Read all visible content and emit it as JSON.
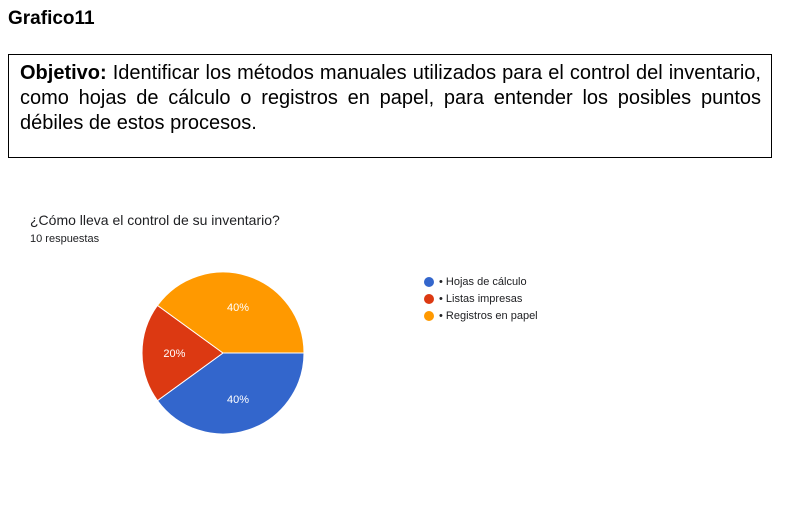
{
  "doc_title": "Grafico11",
  "objective": {
    "label": "Objetivo:",
    "text": " Identificar los métodos manuales utilizados para el control del inventario, como hojas de cálculo o registros en papel, para entender los posibles puntos débiles de estos procesos."
  },
  "chart_data": {
    "type": "pie",
    "title": "¿Cómo lleva el control de su inventario?",
    "subtitle": "10 respuestas",
    "categories": [
      "• Hojas de cálculo",
      "• Listas impresas",
      "• Registros en papel"
    ],
    "values": [
      40,
      20,
      40
    ],
    "data_labels": [
      "40%",
      "20%",
      "40%"
    ],
    "colors": [
      "#3366cc",
      "#dc3912",
      "#ff9900"
    ],
    "start_angle_deg": 90,
    "direction": "clockwise",
    "legend_position": "right"
  }
}
